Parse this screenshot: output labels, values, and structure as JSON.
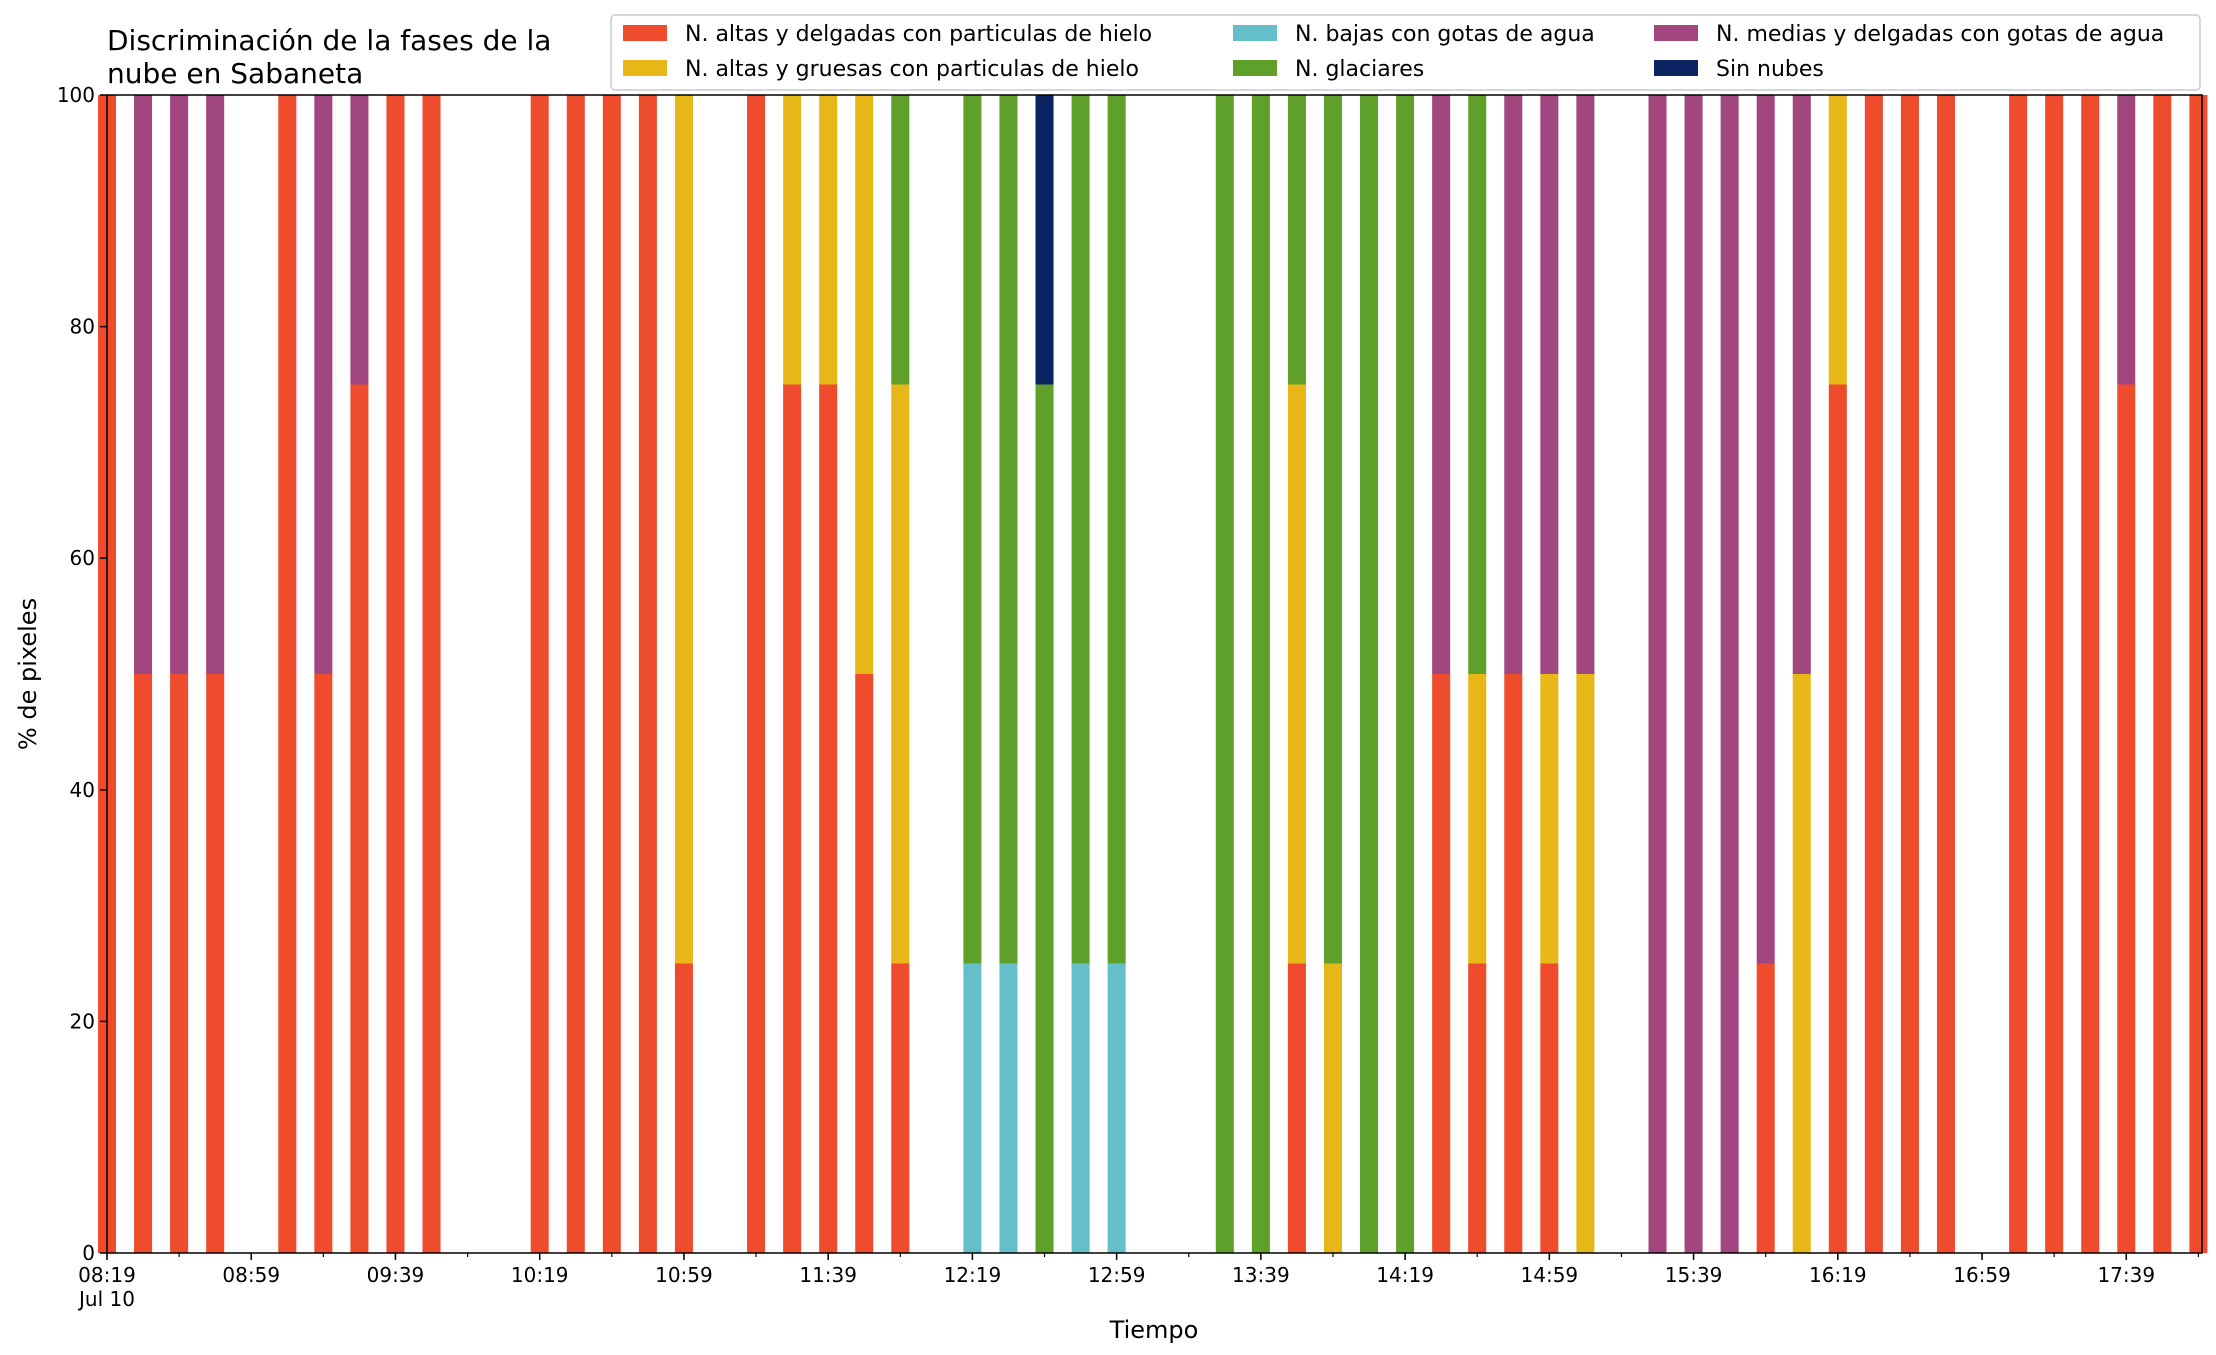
{
  "chart_data": {
    "type": "bar",
    "stacked": true,
    "title": "Discriminación de la fases de la\nnube en Sabaneta",
    "xlabel": "Tiempo",
    "ylabel": "% de pixeles",
    "ylim": [
      0,
      100
    ],
    "yticks": [
      "0",
      "20",
      "40",
      "60",
      "80",
      "100"
    ],
    "grid": false,
    "legend_position": "top-right",
    "x_tick_labels": [
      "08:19",
      "08:59",
      "09:39",
      "10:19",
      "10:59",
      "11:39",
      "12:19",
      "12:59",
      "13:39",
      "14:19",
      "14:59",
      "15:39",
      "16:19",
      "16:59",
      "17:39"
    ],
    "x_tick_date": "Jul 10",
    "x_start": "08:19",
    "x_end": "18:00",
    "x_step_minutes": 10,
    "bar_width_minutes": 5,
    "times": [
      "08:19",
      "08:29",
      "08:39",
      "08:49",
      "09:09",
      "09:19",
      "09:29",
      "09:39",
      "09:49",
      "10:19",
      "10:29",
      "10:39",
      "10:49",
      "10:59",
      "11:19",
      "11:29",
      "11:39",
      "11:49",
      "11:59",
      "12:19",
      "12:29",
      "12:39",
      "12:49",
      "12:59",
      "13:09",
      "13:29",
      "13:39",
      "13:49",
      "13:59",
      "14:09",
      "14:19",
      "14:29",
      "14:39",
      "14:49",
      "14:59",
      "15:09",
      "15:29",
      "15:39",
      "15:49",
      "15:59",
      "16:09",
      "16:19",
      "16:29",
      "16:39",
      "16:49",
      "17:09",
      "17:19",
      "17:29",
      "17:39",
      "17:49",
      "17:59"
    ],
    "series": [
      {
        "name": "N. altas y delgadas con particulas de hielo",
        "color": "#ee4c2c",
        "values": [
          100,
          50,
          50,
          50,
          100,
          50,
          75,
          100,
          100,
          100,
          100,
          100,
          100,
          25,
          100,
          75,
          75,
          50,
          25,
          0,
          0,
          0,
          0,
          0,
          0,
          0,
          0,
          25,
          0,
          0,
          0,
          50,
          25,
          50,
          25,
          0,
          0,
          0,
          0,
          25,
          0,
          75,
          100,
          100,
          100,
          100,
          100,
          100,
          75,
          100,
          100
        ]
      },
      {
        "name": "N. altas y gruesas con particulas de hielo",
        "color": "#e6b717",
        "values": [
          0,
          0,
          0,
          0,
          0,
          0,
          0,
          0,
          0,
          0,
          0,
          0,
          0,
          75,
          0,
          25,
          25,
          50,
          50,
          0,
          0,
          0,
          0,
          0,
          0,
          0,
          0,
          50,
          25,
          0,
          0,
          0,
          25,
          0,
          25,
          50,
          0,
          0,
          0,
          0,
          50,
          25,
          0,
          0,
          0,
          0,
          0,
          0,
          0,
          0,
          0
        ]
      },
      {
        "name": "N. bajas con gotas de agua",
        "color": "#64bfcb",
        "values": [
          0,
          0,
          0,
          0,
          0,
          0,
          0,
          0,
          0,
          0,
          0,
          0,
          0,
          0,
          0,
          0,
          0,
          0,
          0,
          25,
          25,
          0,
          25,
          25,
          0,
          0,
          0,
          0,
          0,
          0,
          0,
          0,
          0,
          0,
          0,
          0,
          0,
          0,
          0,
          0,
          0,
          0,
          0,
          0,
          0,
          0,
          0,
          0,
          0,
          0,
          0
        ]
      },
      {
        "name": "N. glaciares",
        "color": "#5fa02b",
        "values": [
          0,
          0,
          0,
          0,
          0,
          0,
          0,
          0,
          0,
          0,
          0,
          0,
          0,
          0,
          0,
          0,
          0,
          0,
          25,
          75,
          75,
          75,
          75,
          75,
          0,
          100,
          100,
          25,
          75,
          100,
          100,
          0,
          50,
          0,
          0,
          0,
          0,
          0,
          0,
          0,
          0,
          0,
          0,
          0,
          0,
          0,
          0,
          0,
          0,
          0,
          0
        ]
      },
      {
        "name": "N. medias y delgadas con gotas de agua",
        "color": "#a1467e",
        "values": [
          0,
          50,
          50,
          50,
          0,
          50,
          25,
          0,
          0,
          0,
          0,
          0,
          0,
          0,
          0,
          0,
          0,
          0,
          0,
          0,
          0,
          0,
          0,
          0,
          0,
          0,
          0,
          0,
          0,
          0,
          0,
          50,
          0,
          50,
          50,
          50,
          100,
          100,
          100,
          75,
          50,
          0,
          0,
          0,
          0,
          0,
          0,
          0,
          25,
          0,
          0
        ]
      },
      {
        "name": "Sin nubes",
        "color": "#0c2461",
        "values": [
          0,
          0,
          0,
          0,
          0,
          0,
          0,
          0,
          0,
          0,
          0,
          0,
          0,
          0,
          0,
          0,
          0,
          0,
          0,
          0,
          0,
          25,
          0,
          0,
          0,
          0,
          0,
          0,
          0,
          0,
          0,
          0,
          0,
          0,
          0,
          0,
          0,
          0,
          0,
          0,
          0,
          0,
          0,
          0,
          0,
          0,
          0,
          0,
          0,
          0,
          0
        ]
      }
    ]
  }
}
